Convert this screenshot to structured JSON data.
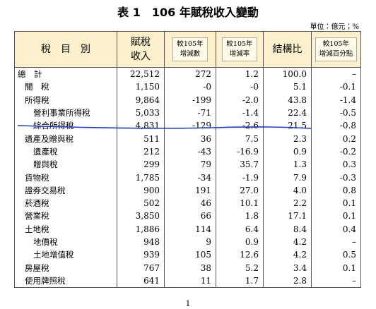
{
  "title": "表 1　106 年賦稅收入變動",
  "unit": "單位：億元；%",
  "table": {
    "headers": [
      [
        "稅　目　別"
      ],
      [
        "賦稅",
        "收入"
      ],
      [
        "較105年",
        "增減數"
      ],
      [
        "較105年",
        "增減率"
      ],
      [
        "結構比"
      ],
      [
        "較105年",
        "增減百分點"
      ]
    ],
    "rows": [
      [
        "總　計",
        "22,512",
        "272",
        "1.2",
        "100.0",
        "–"
      ],
      [
        "關　稅",
        "1,150",
        "-0",
        "-0",
        "5.1",
        "-0.1"
      ],
      [
        "所得稅",
        "9,864",
        "-199",
        "-2.0",
        "43.8",
        "-1.4"
      ],
      [
        "營利事業所得稅",
        "5,033",
        "-71",
        "-1.4",
        "22.4",
        "-0.5"
      ],
      [
        "綜合所得稅",
        "4,831",
        "-129",
        "-2.6",
        "21.5",
        "-0.8"
      ],
      [
        "遺產及贈與稅",
        "511",
        "36",
        "7.5",
        "2.3",
        "0.2"
      ],
      [
        "遺產稅",
        "212",
        "-43",
        "-16.9",
        "0.9",
        "-0.2"
      ],
      [
        "贈與稅",
        "299",
        "79",
        "35.7",
        "1.3",
        "0.3"
      ],
      [
        "貨物稅",
        "1,785",
        "-34",
        "-1.9",
        "7.9",
        "-0.3"
      ],
      [
        "證券交易稅",
        "900",
        "191",
        "27.0",
        "4.0",
        "0.8"
      ],
      [
        "菸酒稅",
        "502",
        "46",
        "10.1",
        "2.2",
        "0.1"
      ],
      [
        "營業稅",
        "3,850",
        "66",
        "1.8",
        "17.1",
        "0.1"
      ],
      [
        "土地稅",
        "1,886",
        "114",
        "6.4",
        "8.4",
        "0.4"
      ],
      [
        "地價稅",
        "948",
        "9",
        "0.9",
        "4.2",
        "–"
      ],
      [
        "土地增值稅",
        "939",
        "105",
        "12.6",
        "4.2",
        "0.5"
      ],
      [
        "房屋稅",
        "767",
        "38",
        "5.2",
        "3.4",
        "0.1"
      ],
      [
        "使用牌照稅",
        "641",
        "11",
        "1.7",
        "2.8",
        "–"
      ]
    ]
  },
  "page_number": "1"
}
